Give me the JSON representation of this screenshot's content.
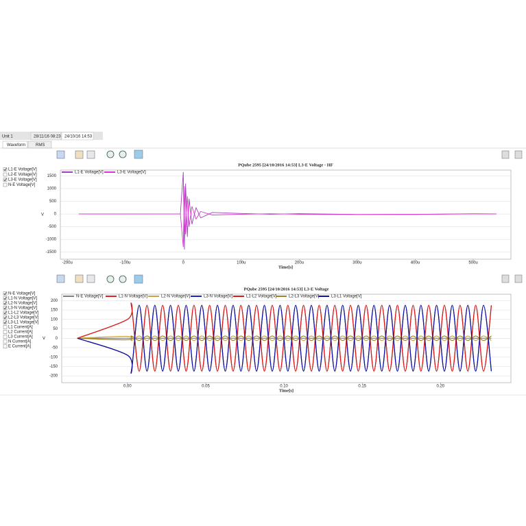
{
  "tabs": {
    "unit": "Unit 1",
    "items": [
      "28/11/16 08:23",
      "24/10/16 14:53"
    ],
    "views": [
      "Waveform",
      "RMS"
    ]
  },
  "panels": [
    {
      "channels": [
        {
          "label": "L1-E Voltage[V]",
          "checked": true
        },
        {
          "label": "L2-E Voltage[V]",
          "checked": false
        },
        {
          "label": "L3-E Voltage[V]",
          "checked": true
        },
        {
          "label": "N-E Voltage[V]",
          "checked": false
        }
      ]
    },
    {
      "channels": [
        {
          "label": "N-E Voltage[V]",
          "checked": true
        },
        {
          "label": "L1-N Voltage[V]",
          "checked": true
        },
        {
          "label": "L2-N Voltage[V]",
          "checked": true
        },
        {
          "label": "L3-N Voltage[V]",
          "checked": true
        },
        {
          "label": "L1-L2 Voltage[V]",
          "checked": true
        },
        {
          "label": "L2-L3 Voltage[V]",
          "checked": true
        },
        {
          "label": "L3-L1 Voltage[V]",
          "checked": true
        },
        {
          "label": "L1 Current[A]",
          "checked": false
        },
        {
          "label": "L2 Current[A]",
          "checked": false
        },
        {
          "label": "L3 Current[A]",
          "checked": false
        },
        {
          "label": "N Current[A]",
          "checked": false
        },
        {
          "label": "E Current[A]",
          "checked": false
        }
      ]
    }
  ],
  "chart_data": [
    {
      "type": "line",
      "title": "PQube 2595 [24/10/2016 14:53] L3-E Voltage - HF",
      "x_label": "Time[s]",
      "y_label": "V",
      "grid": true,
      "xlim": [
        -0.000212,
        0.000565
      ],
      "ylim": [
        -1780,
        1730
      ],
      "xticks": [
        {
          "value": -0.0002,
          "label": "-200u"
        },
        {
          "value": -0.0001,
          "label": "-100u"
        },
        0,
        {
          "value": 0.0001,
          "label": "100u"
        },
        {
          "value": 0.0002,
          "label": "200u"
        },
        {
          "value": 0.0003,
          "label": "300u"
        },
        {
          "value": 0.0004,
          "label": "400u"
        },
        {
          "value": 0.0005,
          "label": "500u"
        }
      ],
      "yticks": [
        1500,
        1000,
        500,
        0,
        -500,
        -1000,
        -1500
      ],
      "x": [
        -0.00018,
        -5e-06,
        0,
        2e-06,
        4e-06,
        7e-06,
        1e-05,
        1.5e-05,
        2.2e-05,
        3e-05,
        5e-05,
        0.0001,
        0.00015,
        0.0002,
        0.0003,
        0.0004,
        0.0005,
        0.00054
      ],
      "series": [
        {
          "name": "L1-E Voltage[V]",
          "color": "#a040c0",
          "values": [
            0,
            0,
            1650,
            -1400,
            1200,
            -900,
            600,
            -400,
            250,
            -150,
            60,
            20,
            -10,
            15,
            -20,
            -15,
            10,
            5
          ]
        },
        {
          "name": "L3-E Voltage[V]",
          "color": "#e030d0",
          "values": [
            5,
            0,
            -1300,
            1100,
            -800,
            700,
            -500,
            300,
            -200,
            100,
            -40,
            -10,
            10,
            -10,
            -20,
            -15,
            5,
            0
          ]
        }
      ]
    },
    {
      "type": "line",
      "smooth": true,
      "title": "PQube 2595 [24/10/2016 14:53] L3-E Voltage",
      "x_label": "Time[s]",
      "y_label": "V",
      "grid": true,
      "xlim": [
        -0.042,
        0.245
      ],
      "ylim": [
        -236,
        234
      ],
      "xticks": [
        {
          "value": 0,
          "label": "0.00"
        },
        0.05,
        {
          "value": 0.1,
          "label": "0.10"
        },
        0.15,
        {
          "value": 0.2,
          "label": "0.20"
        }
      ],
      "yticks": [
        200,
        150,
        100,
        50,
        0,
        -50,
        -100,
        -150,
        -200
      ],
      "x": [
        -0.032,
        0,
        0.0025,
        0.0075,
        0.0125,
        0.0175,
        0.0225,
        0.0275,
        0.0325,
        0.0375,
        0.0425,
        0.0475,
        0.0525,
        0.0575,
        0.0625,
        0.0675,
        0.0725,
        0.0775,
        0.0825,
        0.0875,
        0.0925,
        0.0975,
        0.1025,
        0.1075,
        0.1125,
        0.1175,
        0.1225,
        0.1275,
        0.1325,
        0.1375,
        0.1425,
        0.1475,
        0.1525,
        0.1575,
        0.1625,
        0.1675,
        0.1725,
        0.1775,
        0.1825,
        0.1875,
        0.1925,
        0.1975,
        0.2025,
        0.2075,
        0.2125,
        0.2175,
        0.2225,
        0.2275,
        0.2325
      ],
      "series": [
        {
          "name": "N-E Voltage[V]",
          "color": "#808080",
          "values": [
            0,
            0,
            0,
            0,
            0,
            0,
            0,
            0,
            0,
            0,
            0,
            0,
            0,
            0,
            0,
            0,
            0,
            0,
            0,
            0,
            0,
            0,
            0,
            0,
            0,
            0,
            0,
            0,
            0,
            0,
            0,
            0,
            0,
            0,
            0,
            0,
            0,
            0,
            0,
            0,
            0,
            0,
            0,
            0,
            0,
            0,
            0,
            0,
            0
          ]
        },
        {
          "name": "L1-N Voltage[V]",
          "color": "#e02020",
          "values": [
            0,
            100,
            175,
            -175,
            175,
            -175,
            175,
            -175,
            175,
            -175,
            175,
            -175,
            175,
            -175,
            175,
            -175,
            175,
            -175,
            175,
            -175,
            175,
            -175,
            175,
            -175,
            175,
            -175,
            175,
            -175,
            175,
            -175,
            175,
            -175,
            175,
            -175,
            175,
            -175,
            175,
            -175,
            175,
            -175,
            175,
            -175,
            175,
            -175,
            175,
            -175,
            175,
            -175,
            175
          ]
        },
        {
          "name": "L2-N Voltage[V]",
          "color": "#c8a040",
          "values": [
            0,
            10,
            -12,
            12,
            -12,
            12,
            -12,
            12,
            -12,
            12,
            -12,
            12,
            -12,
            12,
            -12,
            12,
            -12,
            12,
            -12,
            12,
            -12,
            12,
            -12,
            12,
            -12,
            12,
            -12,
            12,
            -12,
            12,
            -12,
            12,
            -12,
            12,
            -12,
            12,
            -12,
            12,
            -12,
            12,
            -12,
            12,
            -12,
            12,
            -12,
            12,
            -12,
            12,
            -12
          ]
        },
        {
          "name": "L3-N Voltage[V]",
          "color": "#2020c0",
          "values": [
            0,
            -90,
            -175,
            175,
            -175,
            175,
            -175,
            175,
            -175,
            175,
            -175,
            175,
            -175,
            175,
            -175,
            175,
            -175,
            175,
            -175,
            175,
            -175,
            175,
            -175,
            175,
            -175,
            175,
            -175,
            175,
            -175,
            175,
            -175,
            175,
            -175,
            175,
            -175,
            175,
            -175,
            175,
            -175,
            175,
            -175,
            175,
            -175,
            175,
            -175,
            175,
            -175,
            175,
            -175
          ]
        },
        {
          "name": "L1-L2 Voltage[V]",
          "color": "#d81818",
          "values": [
            0,
            100,
            175,
            -175,
            175,
            -175,
            175,
            -175,
            175,
            -175,
            175,
            -175,
            175,
            -175,
            175,
            -175,
            175,
            -175,
            175,
            -175,
            175,
            -175,
            175,
            -175,
            175,
            -175,
            175,
            -175,
            175,
            -175,
            175,
            -175,
            175,
            -175,
            175,
            -175,
            175,
            -175,
            175,
            -175,
            175,
            -175,
            175,
            -175,
            175,
            -175,
            175,
            -175,
            175
          ]
        },
        {
          "name": "L2-L3 Voltage[V]",
          "color": "#a08020",
          "values": [
            0,
            -8,
            12,
            -12,
            12,
            -12,
            12,
            -12,
            12,
            -12,
            12,
            -12,
            12,
            -12,
            12,
            -12,
            12,
            -12,
            12,
            -12,
            12,
            -12,
            12,
            -12,
            12,
            -12,
            12,
            -12,
            12,
            -12,
            12,
            -12,
            12,
            -12,
            12,
            -12,
            12,
            -12,
            12,
            -12,
            12,
            -12,
            12,
            -12,
            12,
            -12,
            12,
            -12,
            12
          ]
        },
        {
          "name": "L3-L1 Voltage[V]",
          "color": "#1010a0",
          "values": [
            0,
            -90,
            -175,
            175,
            -175,
            175,
            -175,
            175,
            -175,
            175,
            -175,
            175,
            -175,
            175,
            -175,
            175,
            -175,
            175,
            -175,
            175,
            -175,
            175,
            -175,
            175,
            -175,
            175,
            -175,
            175,
            -175,
            175,
            -175,
            175,
            -175,
            175,
            -175,
            175,
            -175,
            175,
            -175,
            175,
            -175,
            175,
            -175,
            175,
            -175,
            175,
            -175,
            175,
            -175
          ]
        }
      ]
    }
  ]
}
